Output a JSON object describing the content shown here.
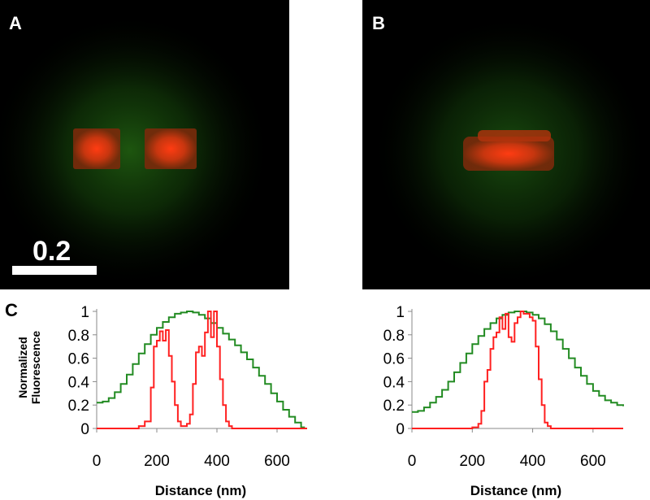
{
  "panels": {
    "a": {
      "letter": "A",
      "scale_bar_label": "0.2"
    },
    "b": {
      "letter": "B"
    },
    "c": {
      "letter": "C"
    }
  },
  "colors": {
    "green_channel": "#228b22",
    "red_channel": "#ff2020",
    "image_background": "#000000"
  },
  "chart_data": [
    {
      "type": "line",
      "title": "",
      "xlabel": "Distance (nm)",
      "ylabel": "Normalized Fluorescence",
      "xlim": [
        0,
        700
      ],
      "ylim": [
        0,
        1
      ],
      "xticks": [
        0,
        200,
        400,
        600
      ],
      "yticks": [
        0,
        0.2,
        0.4,
        0.6,
        0.8,
        1
      ],
      "yticklabels": [
        "0",
        "0.2",
        "0.4",
        "0.6",
        "0.8",
        "1"
      ],
      "grid": false,
      "series": [
        {
          "color": "green",
          "step": true,
          "x": [
            0,
            20,
            40,
            60,
            80,
            100,
            120,
            140,
            160,
            180,
            200,
            220,
            240,
            260,
            280,
            300,
            320,
            340,
            360,
            380,
            400,
            420,
            440,
            460,
            480,
            500,
            520,
            540,
            560,
            580,
            600,
            620,
            640,
            660,
            680,
            690
          ],
          "y": [
            0.22,
            0.23,
            0.26,
            0.31,
            0.38,
            0.46,
            0.55,
            0.64,
            0.72,
            0.8,
            0.86,
            0.91,
            0.95,
            0.98,
            0.99,
            1.0,
            0.99,
            0.97,
            0.94,
            0.9,
            0.86,
            0.81,
            0.76,
            0.71,
            0.65,
            0.59,
            0.52,
            0.45,
            0.38,
            0.3,
            0.23,
            0.16,
            0.1,
            0.05,
            0.01,
            0.0
          ]
        },
        {
          "color": "red",
          "step": true,
          "x": [
            0,
            140,
            160,
            180,
            190,
            200,
            210,
            220,
            230,
            240,
            250,
            260,
            270,
            280,
            290,
            300,
            310,
            320,
            330,
            340,
            350,
            360,
            370,
            380,
            390,
            400,
            410,
            420,
            430,
            440,
            450,
            460,
            470,
            480,
            700
          ],
          "y": [
            0.0,
            0.02,
            0.06,
            0.35,
            0.7,
            0.75,
            0.83,
            0.75,
            0.84,
            0.62,
            0.4,
            0.2,
            0.06,
            0.02,
            0.02,
            0.04,
            0.12,
            0.38,
            0.65,
            0.7,
            0.62,
            0.82,
            1.0,
            0.78,
            1.0,
            0.7,
            0.42,
            0.2,
            0.06,
            0.02,
            0.0,
            0.0,
            0.0,
            0.0,
            0.0
          ]
        }
      ]
    },
    {
      "type": "line",
      "title": "",
      "xlabel": "Distance (nm)",
      "ylabel": "",
      "xlim": [
        0,
        700
      ],
      "ylim": [
        0,
        1
      ],
      "xticks": [
        0,
        200,
        400,
        600
      ],
      "yticks": [
        0,
        0.2,
        0.4,
        0.6,
        0.8,
        1
      ],
      "yticklabels": [
        "0",
        "0.2",
        "0.4",
        "0.6",
        "0.8",
        "1"
      ],
      "grid": false,
      "series": [
        {
          "color": "green",
          "step": true,
          "x": [
            0,
            20,
            40,
            60,
            80,
            100,
            120,
            140,
            160,
            180,
            200,
            220,
            240,
            260,
            280,
            300,
            320,
            340,
            360,
            380,
            400,
            420,
            440,
            460,
            480,
            500,
            520,
            540,
            560,
            580,
            600,
            620,
            640,
            660,
            680,
            700
          ],
          "y": [
            0.14,
            0.15,
            0.18,
            0.22,
            0.27,
            0.33,
            0.4,
            0.48,
            0.56,
            0.64,
            0.72,
            0.79,
            0.85,
            0.9,
            0.94,
            0.97,
            0.99,
            1.0,
            1.0,
            0.99,
            0.97,
            0.94,
            0.89,
            0.83,
            0.76,
            0.68,
            0.6,
            0.52,
            0.45,
            0.38,
            0.32,
            0.28,
            0.24,
            0.22,
            0.2,
            0.19
          ]
        },
        {
          "color": "red",
          "step": true,
          "x": [
            0,
            180,
            200,
            220,
            230,
            240,
            250,
            260,
            270,
            280,
            290,
            300,
            310,
            320,
            330,
            340,
            350,
            360,
            370,
            380,
            390,
            400,
            410,
            420,
            430,
            440,
            450,
            460,
            470,
            480,
            500,
            700
          ],
          "y": [
            0.0,
            0.0,
            0.01,
            0.04,
            0.15,
            0.4,
            0.5,
            0.68,
            0.78,
            0.82,
            0.95,
            0.85,
            0.98,
            0.78,
            0.74,
            0.9,
            0.95,
            1.0,
            0.98,
            0.98,
            0.95,
            0.92,
            0.7,
            0.42,
            0.2,
            0.05,
            0.02,
            0.0,
            0.0,
            0.0,
            0.0,
            0.0
          ]
        }
      ]
    }
  ]
}
